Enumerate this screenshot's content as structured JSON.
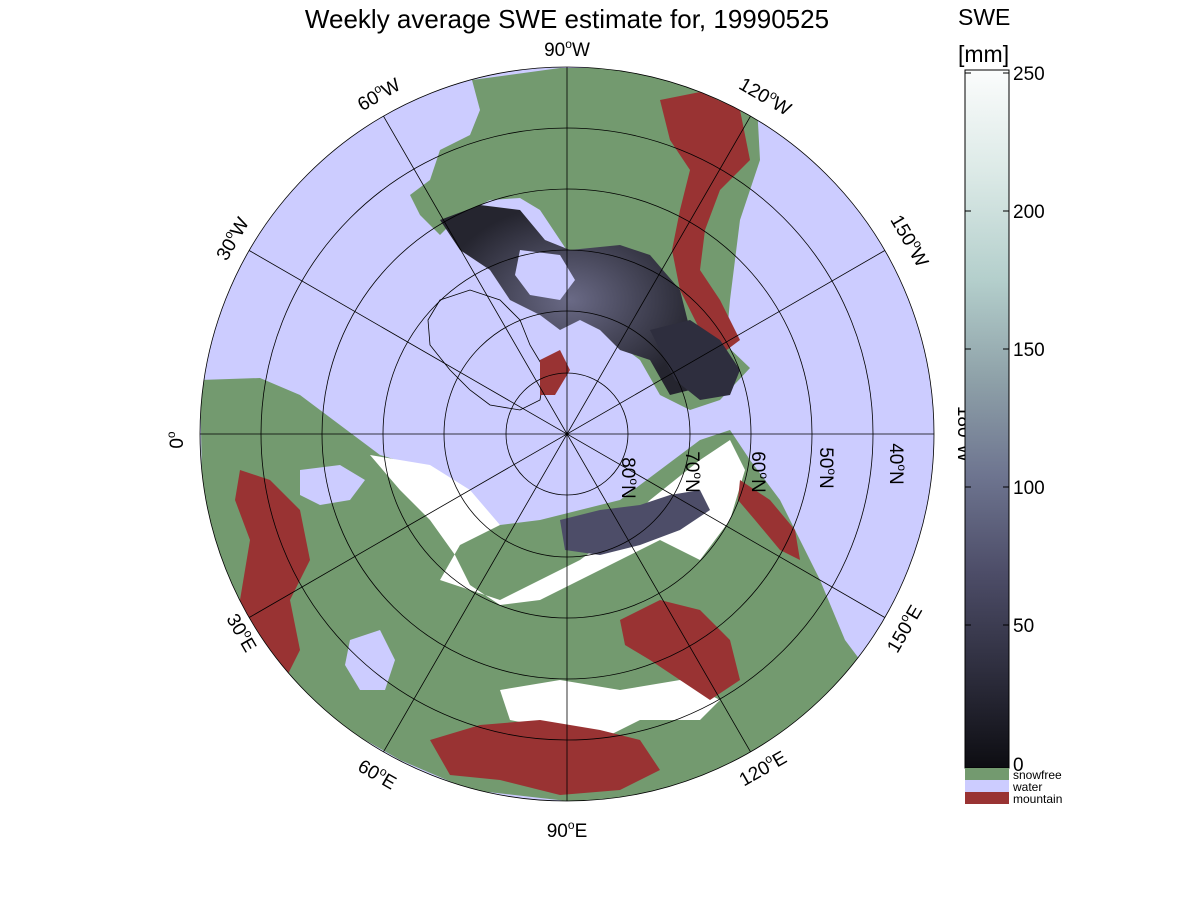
{
  "title": "Weekly average SWE estimate for, 19990525",
  "colorbar": {
    "label_line1": "SWE",
    "label_line2": "[mm]",
    "ticks": [
      "250",
      "200",
      "150",
      "100",
      "50",
      "0"
    ],
    "range": [
      0,
      250
    ],
    "gradient_stops": [
      "#0d0d12",
      "#2e2e3e",
      "#4d4d68",
      "#6e7590",
      "#8fa2a9",
      "#b4cfcc",
      "#dbe9e6",
      "#fbfcfc"
    ]
  },
  "legend": [
    {
      "label": "snowfree",
      "color": "#739a6f"
    },
    {
      "label": "water",
      "color": "#ccccff"
    },
    {
      "label": "mountain",
      "color": "#993333"
    }
  ],
  "map_colors": {
    "water": "#ccccff",
    "land": "#739a6f",
    "mountain": "#993333",
    "snow": "#ffffff",
    "swe_deep": "#2e2e3e"
  },
  "longitude_labels": {
    "lon_90w": {
      "base": "90",
      "sup": "o",
      "dir": "W"
    },
    "lon_120w": {
      "base": "120",
      "sup": "o",
      "dir": "W"
    },
    "lon_150w": {
      "base": "150",
      "sup": "o",
      "dir": "W"
    },
    "lon_180w": {
      "base": "180",
      "sup": "o",
      "dir": "W"
    },
    "lon_150e": {
      "base": "150",
      "sup": "o",
      "dir": "E"
    },
    "lon_120e": {
      "base": "120",
      "sup": "o",
      "dir": "E"
    },
    "lon_90e": {
      "base": "90",
      "sup": "o",
      "dir": "E"
    },
    "lon_60e": {
      "base": "60",
      "sup": "o",
      "dir": "E"
    },
    "lon_30e": {
      "base": "30",
      "sup": "o",
      "dir": "E"
    },
    "lon_0": {
      "base": "0",
      "sup": "o",
      "dir": ""
    },
    "lon_30w": {
      "base": "30",
      "sup": "o",
      "dir": "W"
    },
    "lon_60w": {
      "base": "60",
      "sup": "o",
      "dir": "W"
    }
  },
  "latitude_labels": {
    "lat_80n": {
      "base": "80",
      "sup": "o",
      "dir": "N"
    },
    "lat_70n": {
      "base": "70",
      "sup": "o",
      "dir": "N"
    },
    "lat_60n": {
      "base": "60",
      "sup": "o",
      "dir": "N"
    },
    "lat_50n": {
      "base": "50",
      "sup": "o",
      "dir": "N"
    },
    "lat_40n": {
      "base": "40",
      "sup": "o",
      "dir": "N"
    }
  }
}
